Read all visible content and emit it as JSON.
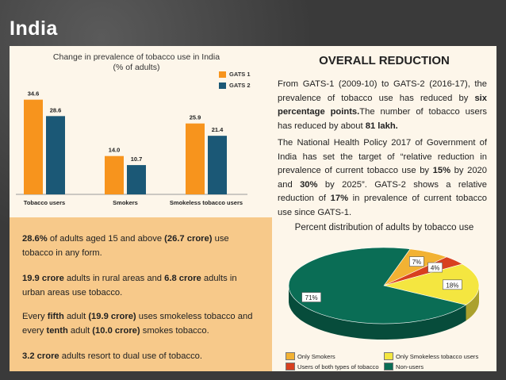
{
  "slide": {
    "title": "India"
  },
  "chart_data": [
    {
      "type": "bar",
      "title": "Change in prevalence of tobacco use in India",
      "subtitle": "(% of adults)",
      "categories": [
        "Tobacco users",
        "Smokers",
        "Smokeless tobacco users"
      ],
      "series": [
        {
          "name": "GATS 1",
          "values": [
            34.6,
            14.0,
            25.9
          ],
          "labels": [
            "34.6",
            "14.0",
            "25.9"
          ],
          "color": "#f7941d"
        },
        {
          "name": "GATS 2",
          "values": [
            28.6,
            10.7,
            21.4
          ],
          "labels": [
            "28.6",
            "10.7",
            "21.4"
          ],
          "color": "#1b5876"
        }
      ],
      "ylim": [
        0,
        40
      ]
    },
    {
      "type": "pie",
      "title": "Percent distribution of adults by tobacco use",
      "slices": [
        {
          "name": "Only Smokers",
          "value": 7,
          "label": "7%",
          "color": "#f2b233"
        },
        {
          "name": "Users of both types of tobacco",
          "value": 4,
          "label": "4%",
          "color": "#d8401f"
        },
        {
          "name": "Only Smokeless tobacco users",
          "value": 18,
          "label": "18%",
          "color": "#f4e640"
        },
        {
          "name": "Non-users",
          "value": 71,
          "label": "71%",
          "color": "#0a6d55"
        }
      ]
    }
  ],
  "overall": {
    "title": "OVERALL REDUCTION",
    "p1_a": "From GATS-1 (2009-10) to GATS-2 (2016-17), the prevalence of tobacco use has reduced by ",
    "p1_b": "six percentage points.",
    "p1_c": "The number of tobacco users has reduced by about ",
    "p1_d": "81 lakh.",
    "p2_a": "The National Health Policy 2017 of Government of India has set the target of “relative reduction in prevalence of current tobacco use by ",
    "p2_b": "15%",
    "p2_c": " by 2020 and ",
    "p2_d": "30%",
    "p2_e": " by 2025”. GATS-2 shows a relative reduction of ",
    "p2_f": "17%",
    "p2_g": " in prevalence of current tobacco use since GATS-1."
  },
  "facts": {
    "f1_a": "28.6%",
    "f1_b": " of adults aged 15 and above ",
    "f1_c": "(26.7 crore)",
    "f1_d": " use tobacco in any form.",
    "f2_a": "19.9 crore",
    "f2_b": " adults in rural areas and ",
    "f2_c": "6.8 crore",
    "f2_d": " adults in urban areas use tobacco.",
    "f3_a": "Every ",
    "f3_b": "fifth",
    "f3_c": " adult ",
    "f3_d": "(19.9 crore)",
    "f3_e": " uses smokeless tobacco and every ",
    "f3_f": "tenth",
    "f3_g": " adult ",
    "f3_h": "(10.0 crore)",
    "f3_i": " smokes tobacco.",
    "f4_a": "3.2 crore",
    "f4_b": " adults resort to dual use of tobacco."
  }
}
